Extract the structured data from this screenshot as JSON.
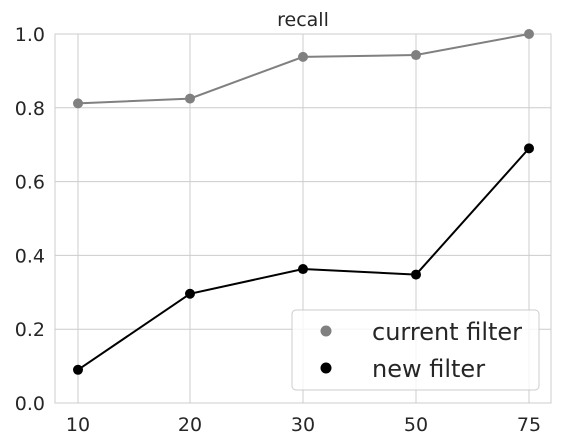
{
  "chart_data": {
    "type": "line",
    "title": "recall",
    "xlabel": "",
    "ylabel": "",
    "categories": [
      "10",
      "20",
      "30",
      "50",
      "75"
    ],
    "ylim": [
      0,
      1.0
    ],
    "yticks": [
      "0.0",
      "0.2",
      "0.4",
      "0.6",
      "0.8",
      "1.0"
    ],
    "grid": true,
    "legend_position": "bottom-right",
    "series": [
      {
        "name": "current filter",
        "color": "#808080",
        "values": [
          0.812,
          0.825,
          0.938,
          0.943,
          1.0
        ]
      },
      {
        "name": "new filter",
        "color": "#000000",
        "values": [
          0.09,
          0.296,
          0.363,
          0.348,
          0.69
        ]
      }
    ]
  }
}
